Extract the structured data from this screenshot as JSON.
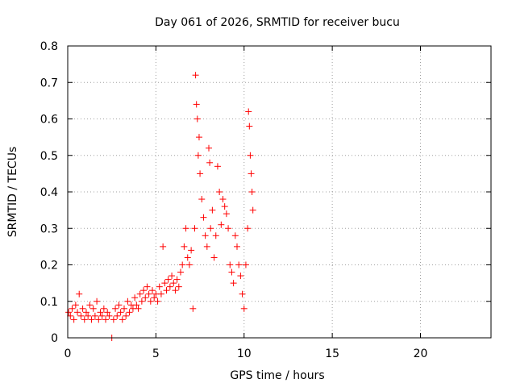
{
  "chart_data": {
    "type": "scatter",
    "title": "Day 061 of 2026, SRMTID for receiver bucu",
    "xlabel": "GPS time / hours",
    "ylabel": "SRMTID / TECUs",
    "xlim": [
      0,
      24
    ],
    "ylim": [
      0,
      0.8
    ],
    "xticks": [
      0,
      5,
      10,
      15,
      20
    ],
    "yticks": [
      0,
      0.1,
      0.2,
      0.3,
      0.4,
      0.5,
      0.6,
      0.7,
      0.8
    ],
    "grid": true,
    "marker": "+",
    "series": [
      {
        "name": "bucu",
        "color": "#ff0000",
        "points": [
          [
            0.05,
            0.07
          ],
          [
            0.15,
            0.06
          ],
          [
            0.25,
            0.08
          ],
          [
            0.35,
            0.05
          ],
          [
            0.45,
            0.09
          ],
          [
            0.55,
            0.07
          ],
          [
            0.65,
            0.12
          ],
          [
            0.75,
            0.06
          ],
          [
            0.85,
            0.08
          ],
          [
            0.95,
            0.05
          ],
          [
            1.05,
            0.07
          ],
          [
            1.15,
            0.06
          ],
          [
            1.25,
            0.09
          ],
          [
            1.35,
            0.05
          ],
          [
            1.45,
            0.08
          ],
          [
            1.55,
            0.06
          ],
          [
            1.65,
            0.1
          ],
          [
            1.75,
            0.05
          ],
          [
            1.85,
            0.07
          ],
          [
            1.95,
            0.06
          ],
          [
            2.05,
            0.08
          ],
          [
            2.15,
            0.05
          ],
          [
            2.25,
            0.07
          ],
          [
            2.35,
            0.06
          ],
          [
            2.5,
            0.0
          ],
          [
            2.6,
            0.05
          ],
          [
            2.7,
            0.08
          ],
          [
            2.8,
            0.06
          ],
          [
            2.9,
            0.09
          ],
          [
            3.0,
            0.07
          ],
          [
            3.1,
            0.05
          ],
          [
            3.2,
            0.08
          ],
          [
            3.3,
            0.06
          ],
          [
            3.4,
            0.1
          ],
          [
            3.5,
            0.07
          ],
          [
            3.6,
            0.09
          ],
          [
            3.7,
            0.08
          ],
          [
            3.8,
            0.11
          ],
          [
            3.9,
            0.09
          ],
          [
            4.0,
            0.08
          ],
          [
            4.1,
            0.12
          ],
          [
            4.2,
            0.1
          ],
          [
            4.3,
            0.13
          ],
          [
            4.4,
            0.11
          ],
          [
            4.5,
            0.14
          ],
          [
            4.6,
            0.12
          ],
          [
            4.7,
            0.1
          ],
          [
            4.8,
            0.13
          ],
          [
            4.9,
            0.11
          ],
          [
            5.0,
            0.12
          ],
          [
            5.1,
            0.1
          ],
          [
            5.2,
            0.14
          ],
          [
            5.3,
            0.12
          ],
          [
            5.4,
            0.25
          ],
          [
            5.5,
            0.15
          ],
          [
            5.6,
            0.13
          ],
          [
            5.7,
            0.16
          ],
          [
            5.8,
            0.14
          ],
          [
            5.9,
            0.17
          ],
          [
            6.0,
            0.15
          ],
          [
            6.1,
            0.13
          ],
          [
            6.2,
            0.16
          ],
          [
            6.3,
            0.14
          ],
          [
            6.4,
            0.18
          ],
          [
            6.5,
            0.2
          ],
          [
            6.6,
            0.25
          ],
          [
            6.7,
            0.3
          ],
          [
            6.8,
            0.22
          ],
          [
            6.9,
            0.2
          ],
          [
            7.0,
            0.24
          ],
          [
            7.1,
            0.08
          ],
          [
            7.2,
            0.3
          ],
          [
            7.25,
            0.72
          ],
          [
            7.3,
            0.64
          ],
          [
            7.35,
            0.6
          ],
          [
            7.4,
            0.5
          ],
          [
            7.45,
            0.55
          ],
          [
            7.5,
            0.45
          ],
          [
            7.6,
            0.38
          ],
          [
            7.7,
            0.33
          ],
          [
            7.8,
            0.28
          ],
          [
            7.9,
            0.25
          ],
          [
            8.0,
            0.52
          ],
          [
            8.05,
            0.48
          ],
          [
            8.1,
            0.3
          ],
          [
            8.2,
            0.35
          ],
          [
            8.3,
            0.22
          ],
          [
            8.4,
            0.28
          ],
          [
            8.5,
            0.47
          ],
          [
            8.6,
            0.4
          ],
          [
            8.7,
            0.31
          ],
          [
            8.8,
            0.38
          ],
          [
            8.9,
            0.36
          ],
          [
            9.0,
            0.34
          ],
          [
            9.1,
            0.3
          ],
          [
            9.2,
            0.2
          ],
          [
            9.3,
            0.18
          ],
          [
            9.4,
            0.15
          ],
          [
            9.5,
            0.28
          ],
          [
            9.6,
            0.25
          ],
          [
            9.7,
            0.2
          ],
          [
            9.8,
            0.17
          ],
          [
            9.9,
            0.12
          ],
          [
            10.0,
            0.08
          ],
          [
            10.1,
            0.2
          ],
          [
            10.2,
            0.3
          ],
          [
            10.25,
            0.62
          ],
          [
            10.3,
            0.58
          ],
          [
            10.35,
            0.5
          ],
          [
            10.4,
            0.45
          ],
          [
            10.45,
            0.4
          ],
          [
            10.5,
            0.35
          ]
        ]
      }
    ]
  }
}
